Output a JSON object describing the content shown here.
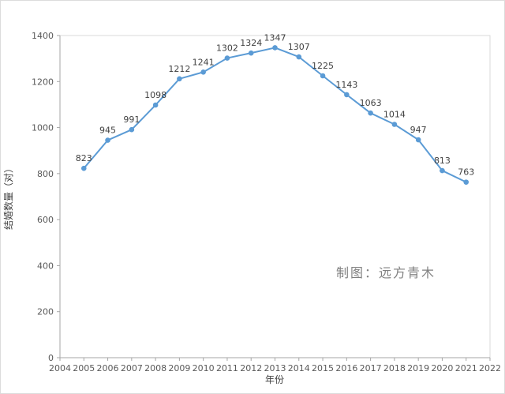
{
  "chart_data": {
    "type": "line",
    "title": "",
    "xlabel": "年份",
    "ylabel": "结婚数量（对）",
    "x": [
      2005,
      2006,
      2007,
      2008,
      2009,
      2010,
      2011,
      2012,
      2013,
      2014,
      2015,
      2016,
      2017,
      2018,
      2019,
      2020,
      2021
    ],
    "values": [
      823,
      945,
      991,
      1098,
      1212,
      1241,
      1302,
      1324,
      1347,
      1307,
      1225,
      1143,
      1063,
      1014,
      947,
      813,
      763
    ],
    "xlim": [
      2004,
      2022
    ],
    "ylim": [
      0,
      1400
    ],
    "xticks": [
      2004,
      2005,
      2006,
      2007,
      2008,
      2009,
      2010,
      2011,
      2012,
      2013,
      2014,
      2015,
      2016,
      2017,
      2018,
      2019,
      2020,
      2021,
      2022
    ],
    "yticks": [
      0,
      200,
      400,
      600,
      800,
      1000,
      1200,
      1400
    ],
    "grid": false,
    "legend": "none",
    "line_color": "#5b9bd5",
    "marker_color": "#5b9bd5",
    "label_color": "#404040",
    "axis_color": "#a6a6a6",
    "border_color": "#d9d9d9",
    "watermark": "制图：远方青木"
  }
}
